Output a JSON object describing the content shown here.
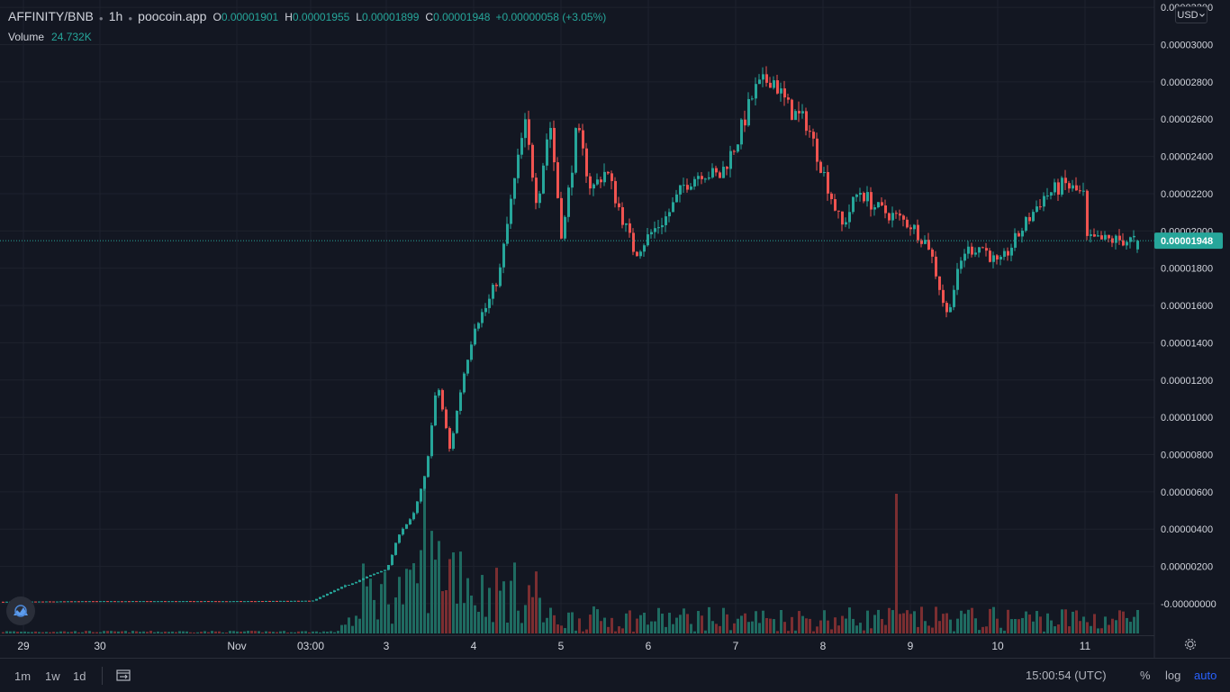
{
  "header": {
    "symbol": "AFFINITY/BNB",
    "interval": "1h",
    "source": "poocoin.app",
    "ohlc": [
      {
        "key": "O",
        "value": "0.00001901"
      },
      {
        "key": "H",
        "value": "0.00001955"
      },
      {
        "key": "L",
        "value": "0.00001899"
      },
      {
        "key": "C",
        "value": "0.00001948"
      }
    ],
    "change": "+0.00000058 (+3.05%)"
  },
  "volume_legend": {
    "label": "Volume",
    "value": "24.732K"
  },
  "currency_label": "USD",
  "bottom_bar": {
    "timeframes": [
      "1m",
      "1w",
      "1d"
    ],
    "clock": "15:00:54 (UTC)",
    "percent": "%",
    "log": "log",
    "auto": "auto"
  },
  "colors": {
    "background": "#131722",
    "grid": "#1e222d",
    "up": "#26a69a",
    "down": "#ef5350",
    "vol_up": "#1f6b61",
    "vol_down": "#7b2e31",
    "price_line": "#26a69a",
    "axis_text": "#d1d4dc"
  },
  "chart_data": {
    "type": "candlestick",
    "title": "AFFINITY/BNB",
    "ylabel": "",
    "y_ticks": [
      "0.00003200",
      "0.00003000",
      "0.00002800",
      "0.00002600",
      "0.00002400",
      "0.00002200",
      "0.00002000",
      "0.00001800",
      "0.00001600",
      "0.00001400",
      "0.00001200",
      "0.00001000",
      "0.00000800",
      "0.00000600",
      "0.00000400",
      "0.00000200",
      "-0.00000000"
    ],
    "ylim": [
      -1e-07,
      3.22e-05
    ],
    "x_ticks": [
      "29",
      "30",
      "Nov",
      "03:00",
      "3",
      "4",
      "5",
      "6",
      "7",
      "8",
      "9",
      "10",
      "11"
    ],
    "last_price": "0.00001948",
    "price_points": [
      [
        "29",
        1e-07
      ],
      [
        "30",
        1.3e-07
      ],
      [
        "Nov",
        1.3e-07
      ],
      [
        "03:00",
        1.5e-07
      ],
      [
        "03:00",
        8e-07
      ],
      [
        "3",
        1.9e-06
      ],
      [
        "3",
        3.9e-06
      ],
      [
        "3",
        4.6e-06
      ],
      [
        "3",
        6.8e-06
      ],
      [
        "3",
        1.19e-05
      ],
      [
        "3",
        8.2e-06
      ],
      [
        "3",
        1.2e-05
      ],
      [
        "4",
        1.5e-05
      ],
      [
        "4",
        1.6e-05
      ],
      [
        "4",
        1.78e-05
      ],
      [
        "4",
        2.2e-05
      ],
      [
        "4",
        2.58e-05
      ],
      [
        "4",
        2.15e-05
      ],
      [
        "4",
        2.6e-05
      ],
      [
        "5",
        1.95e-05
      ],
      [
        "5",
        2.55e-05
      ],
      [
        "5",
        2.22e-05
      ],
      [
        "5",
        2.33e-05
      ],
      [
        "5",
        2.1e-05
      ],
      [
        "5",
        1.88e-05
      ],
      [
        "6",
        1.98e-05
      ],
      [
        "6",
        2.08e-05
      ],
      [
        "6",
        2.25e-05
      ],
      [
        "6",
        2.32e-05
      ],
      [
        "6",
        2.29e-05
      ],
      [
        "7",
        2.48e-05
      ],
      [
        "7",
        2.75e-05
      ],
      [
        "7",
        2.83e-05
      ],
      [
        "7",
        2.65e-05
      ],
      [
        "7",
        2.58e-05
      ],
      [
        "8",
        2.3e-05
      ],
      [
        "8",
        2.02e-05
      ],
      [
        "8",
        2.22e-05
      ],
      [
        "8",
        2.12e-05
      ],
      [
        "8",
        2.08e-05
      ],
      [
        "9",
        2.03e-05
      ],
      [
        "9",
        1.92e-05
      ],
      [
        "9",
        1.55e-05
      ],
      [
        "9",
        1.89e-05
      ],
      [
        "9",
        1.92e-05
      ],
      [
        "10",
        1.81e-05
      ],
      [
        "10",
        2e-05
      ],
      [
        "10",
        2.18e-05
      ],
      [
        "10",
        2.25e-05
      ],
      [
        "11",
        2.18e-05
      ],
      [
        "11",
        2.1e-05
      ],
      [
        "11",
        1.93e-05
      ],
      [
        "11",
        1.92e-05
      ],
      [
        "11",
        1.95e-05
      ]
    ],
    "volume_spikes_shown": "peak near 3-4 Nov and single spike near 9 Nov"
  }
}
